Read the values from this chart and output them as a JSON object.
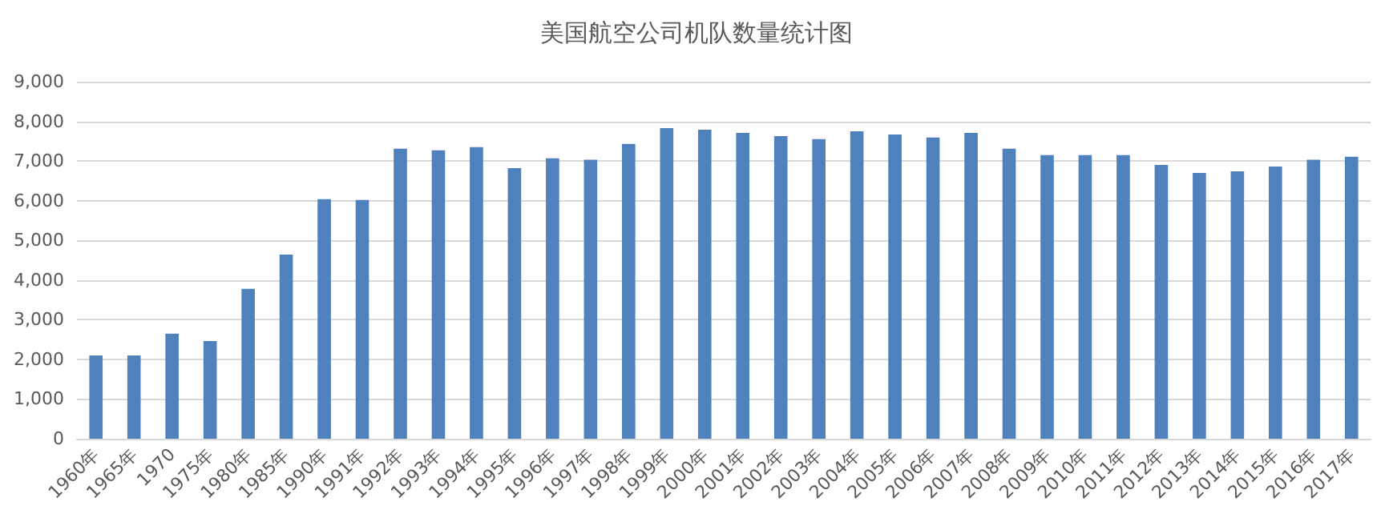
{
  "chart_data": {
    "type": "bar",
    "title": "美国航空公司机队数量统计图",
    "categories": [
      "1960年",
      "1965年",
      "1970",
      "1975年",
      "1980年",
      "1985年",
      "1990年",
      "1991年",
      "1992年",
      "1993年",
      "1994年",
      "1995年",
      "1996年",
      "1997年",
      "1998年",
      "1999年",
      "2000年",
      "2001年",
      "2002年",
      "2003年",
      "2004年",
      "2005年",
      "2006年",
      "2007年",
      "2008年",
      "2009年",
      "2010年",
      "2011年",
      "2012年",
      "2013年",
      "2014年",
      "2015年",
      "2016年",
      "2017年"
    ],
    "values": [
      2100,
      2100,
      2650,
      2460,
      3780,
      4640,
      6040,
      6020,
      7310,
      7270,
      7350,
      6820,
      7070,
      7030,
      7430,
      7830,
      7790,
      7710,
      7630,
      7550,
      7750,
      7670,
      7590,
      7710,
      7310,
      7150,
      7150,
      7150,
      6900,
      6700,
      6740,
      6860,
      7030,
      7110
    ],
    "color": "#4f81bd",
    "ylim": [
      0,
      9000
    ],
    "yticks": [
      0,
      {
        "value": 1000,
        "label": "1,000"
      },
      {
        "value": 2000,
        "label": "2,000"
      },
      {
        "value": 3000,
        "label": "3,000"
      },
      {
        "value": 4000,
        "label": "4,000"
      },
      {
        "value": 5000,
        "label": "5,000"
      },
      {
        "value": 6000,
        "label": "6,000"
      },
      {
        "value": 7000,
        "label": "7,000"
      },
      {
        "value": 8000,
        "label": "8,000"
      },
      {
        "value": 9000,
        "label": "9,000"
      }
    ],
    "grid": "y"
  }
}
